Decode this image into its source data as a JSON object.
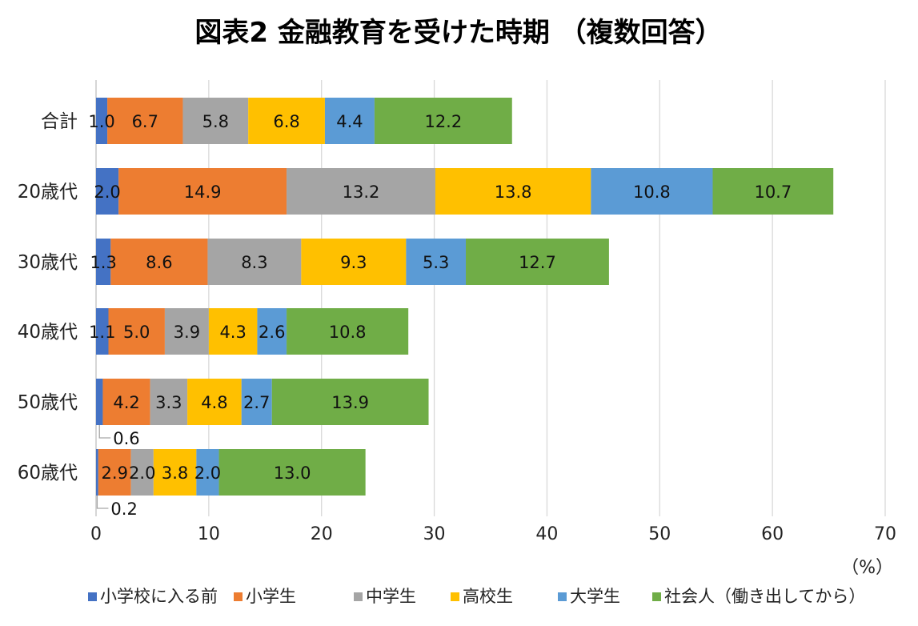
{
  "chart_data": {
    "type": "bar",
    "orientation": "horizontal",
    "stacked": true,
    "title": "図表2  金融教育を受けた時期 （複数回答）",
    "unit_label": "（%）",
    "categories": [
      "合計",
      "20歳代",
      "30歳代",
      "40歳代",
      "50歳代",
      "60歳代"
    ],
    "series": [
      {
        "name": "小学校に入る前",
        "color": "#4472C4",
        "values": [
          1.0,
          2.0,
          1.3,
          1.1,
          0.6,
          0.2
        ],
        "labels": [
          "1.0",
          "2.0",
          "1.3",
          "1.1",
          "0.6",
          "0.2"
        ]
      },
      {
        "name": "小学生",
        "color": "#ED7D31",
        "values": [
          6.7,
          14.9,
          8.6,
          5.0,
          4.2,
          2.9
        ],
        "labels": [
          "6.7",
          "14.9",
          "8.6",
          "5.0",
          "4.2",
          "2.9"
        ]
      },
      {
        "name": "中学生",
        "color": "#A5A5A5",
        "values": [
          5.8,
          13.2,
          8.3,
          3.9,
          3.3,
          2.0
        ],
        "labels": [
          "5.8",
          "13.2",
          "8.3",
          "3.9",
          "3.3",
          "2.0"
        ]
      },
      {
        "name": "高校生",
        "color": "#FFC000",
        "values": [
          6.8,
          13.8,
          9.3,
          4.3,
          4.8,
          3.8
        ],
        "labels": [
          "6.8",
          "13.8",
          "9.3",
          "4.3",
          "4.8",
          "3.8"
        ]
      },
      {
        "name": "大学生",
        "color": "#5B9BD5",
        "values": [
          4.4,
          10.8,
          5.3,
          2.6,
          2.7,
          2.0
        ],
        "labels": [
          "4.4",
          "10.8",
          "5.3",
          "2.6",
          "2.7",
          "2.0"
        ]
      },
      {
        "name": "社会人（働き出してから）",
        "color": "#70AD47",
        "values": [
          12.2,
          10.7,
          12.7,
          10.8,
          13.9,
          13.0
        ],
        "labels": [
          "12.2",
          "10.7",
          "12.7",
          "10.8",
          "13.9",
          "13.0"
        ]
      }
    ],
    "callouts": [
      {
        "category": "50歳代",
        "series": "小学校に入る前",
        "label": "0.6"
      },
      {
        "category": "60歳代",
        "series": "小学校に入る前",
        "label": "0.2"
      }
    ],
    "xlim": [
      0,
      70
    ],
    "xticks": [
      0,
      10,
      20,
      30,
      40,
      50,
      60,
      70
    ],
    "xlabel": "",
    "ylabel": "",
    "grid": true,
    "legend_position": "bottom"
  }
}
